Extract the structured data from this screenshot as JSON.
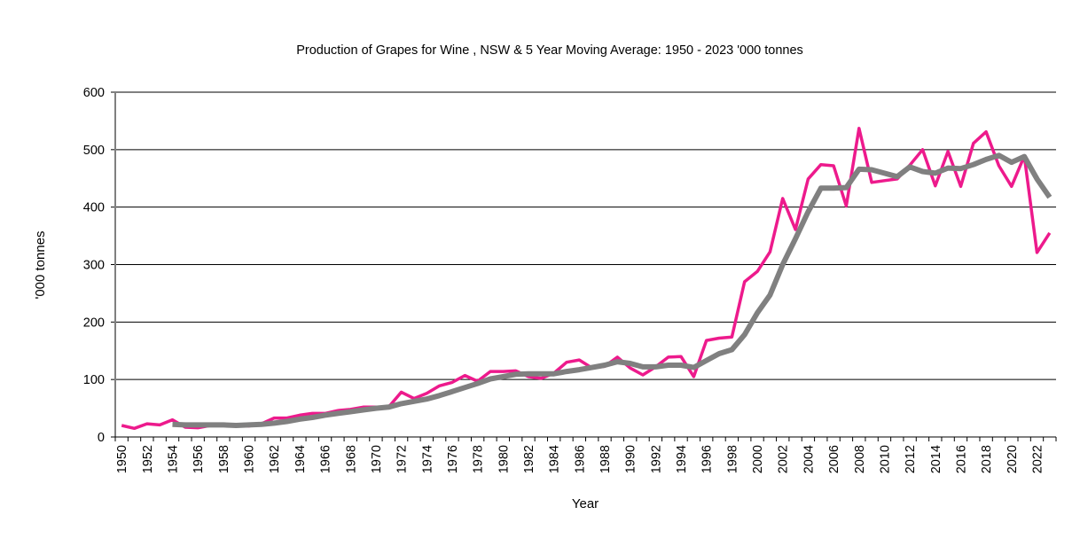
{
  "chart_data": {
    "type": "line",
    "title": "Production of Grapes for Wine , NSW & 5 Year Moving Average: 1950 - 2023 '000 tonnes",
    "xlabel": "Year",
    "ylabel": "'000 tonnes",
    "ylim": [
      0,
      600
    ],
    "yticks": [
      0,
      100,
      200,
      300,
      400,
      500,
      600
    ],
    "grid": true,
    "legend": "none",
    "x": [
      1950,
      1951,
      1952,
      1953,
      1954,
      1955,
      1956,
      1957,
      1958,
      1959,
      1960,
      1961,
      1962,
      1963,
      1964,
      1965,
      1966,
      1967,
      1968,
      1969,
      1970,
      1971,
      1972,
      1973,
      1974,
      1975,
      1976,
      1977,
      1978,
      1979,
      1980,
      1981,
      1982,
      1983,
      1984,
      1985,
      1986,
      1987,
      1988,
      1989,
      1990,
      1991,
      1992,
      1993,
      1994,
      1995,
      1996,
      1997,
      1998,
      1999,
      2000,
      2001,
      2002,
      2003,
      2004,
      2005,
      2006,
      2007,
      2008,
      2009,
      2010,
      2011,
      2012,
      2013,
      2014,
      2015,
      2016,
      2017,
      2018,
      2019,
      2020,
      2021,
      2022,
      2023
    ],
    "xtick_labels": [
      "1950",
      "1952",
      "1954",
      "1956",
      "1958",
      "1960",
      "1962",
      "1964",
      "1966",
      "1968",
      "1970",
      "1972",
      "1974",
      "1976",
      "1978",
      "1980",
      "1982",
      "1984",
      "1986",
      "1988",
      "1990",
      "1992",
      "1994",
      "1996",
      "1998",
      "2000",
      "2002",
      "2004",
      "2006",
      "2008",
      "2010",
      "2012",
      "2014",
      "2016",
      "2018",
      "2020",
      "2022"
    ],
    "series": [
      {
        "name": "Production of Grapes for Wine, NSW",
        "color": "#ed1a8c",
        "values": [
          20,
          15,
          23,
          21,
          30,
          17,
          16,
          20,
          20,
          22,
          19,
          23,
          33,
          33,
          38,
          41,
          41,
          46,
          48,
          52,
          52,
          52,
          78,
          67,
          76,
          89,
          95,
          107,
          97,
          114,
          114,
          115,
          105,
          102,
          111,
          130,
          134,
          120,
          123,
          139,
          120,
          108,
          122,
          139,
          140,
          105,
          168,
          172,
          174,
          270,
          288,
          322,
          415,
          361,
          449,
          474,
          472,
          402,
          537,
          443,
          446,
          449,
          473,
          500,
          437,
          497,
          436,
          511,
          531,
          472,
          436,
          489,
          321,
          355
        ]
      },
      {
        "name": "5 Year Moving Average",
        "color": "#808080",
        "values": [
          null,
          null,
          null,
          null,
          22,
          21,
          21,
          21,
          21,
          20,
          21,
          22,
          24,
          27,
          31,
          34,
          38,
          41,
          44,
          47,
          50,
          52,
          58,
          62,
          66,
          72,
          79,
          86,
          93,
          101,
          105,
          109,
          110,
          110,
          110,
          114,
          117,
          121,
          125,
          131,
          128,
          122,
          122,
          125,
          125,
          121,
          133,
          145,
          152,
          178,
          216,
          247,
          300,
          345,
          392,
          433,
          433,
          434,
          466,
          465,
          459,
          453,
          470,
          462,
          459,
          468,
          467,
          474,
          483,
          490,
          478,
          488,
          449,
          417
        ]
      }
    ]
  }
}
